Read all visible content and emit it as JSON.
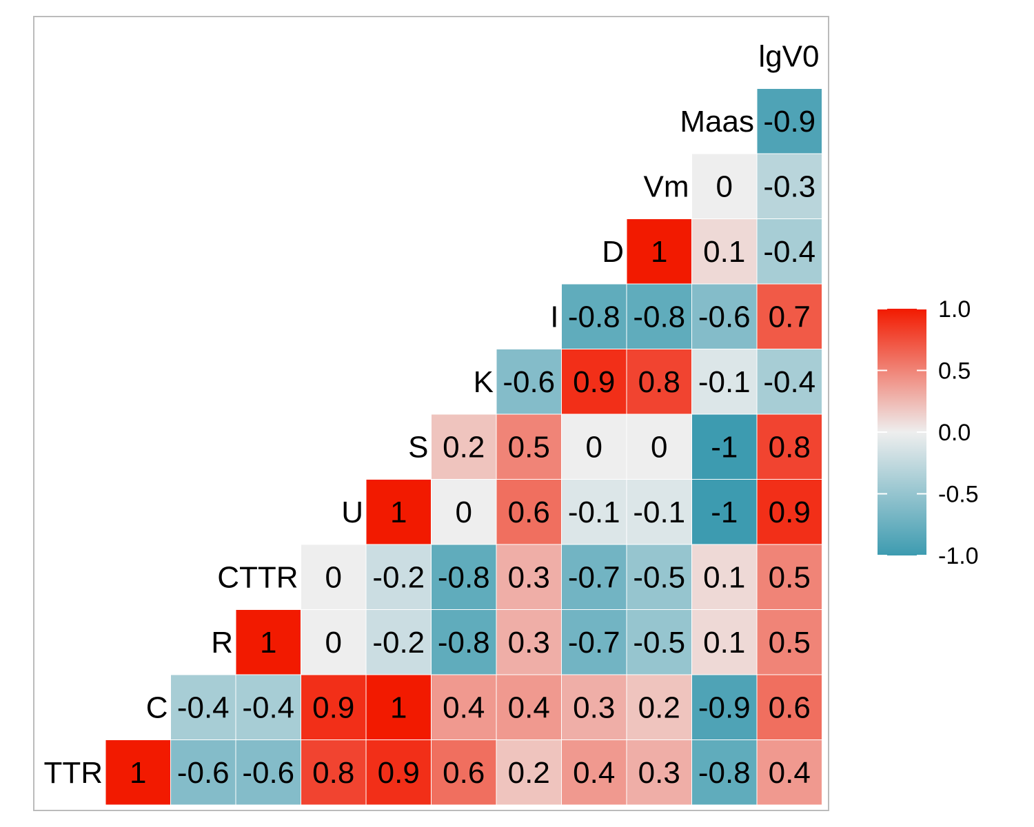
{
  "chart_data": {
    "type": "heatmap",
    "title": "",
    "variables": [
      "TTR",
      "C",
      "R",
      "CTTR",
      "U",
      "S",
      "K",
      "I",
      "D",
      "Vm",
      "Maas",
      "lgV0"
    ],
    "matrix": [
      [
        "1"
      ],
      [
        "-0.6",
        "-0.4"
      ],
      [
        "-0.6",
        "-0.4",
        "1"
      ],
      [
        "0.8",
        "0.9",
        "0",
        "0"
      ],
      [
        "0.9",
        "1",
        "-0.2",
        "-0.2",
        "1"
      ],
      [
        "0.6",
        "0.4",
        "-0.8",
        "-0.8",
        "0",
        "0.2"
      ],
      [
        "0.2",
        "0.4",
        "0.3",
        "0.3",
        "0.6",
        "0.5",
        "-0.6"
      ],
      [
        "0.4",
        "0.3",
        "-0.7",
        "-0.7",
        "-0.1",
        "0",
        "0.9",
        "-0.8"
      ],
      [
        "0.3",
        "0.2",
        "-0.5",
        "-0.5",
        "-0.1",
        "0",
        "0.8",
        "-0.8",
        "1"
      ],
      [
        "-0.8",
        "-0.9",
        "0.1",
        "0.1",
        "-1",
        "-1",
        "-0.1",
        "-0.6",
        "0.1",
        "0"
      ],
      [
        "0.4",
        "0.6",
        "0.5",
        "0.5",
        "0.9",
        "0.8",
        "-0.4",
        "0.7",
        "-0.4",
        "-0.3",
        "-0.9"
      ]
    ],
    "legend": {
      "ticks": [
        "1.0",
        "0.5",
        "0.0",
        "-0.5",
        "-1.0"
      ],
      "tick_values": [
        1,
        0.5,
        0,
        -0.5,
        -1
      ],
      "range": [
        -1,
        1
      ]
    },
    "colors": {
      "low": "#3D9BB0",
      "mid": "#EEEEEE",
      "high": "#F21A00",
      "cell_border": "#ffffff",
      "panel_border": "#bbbbbb"
    }
  }
}
